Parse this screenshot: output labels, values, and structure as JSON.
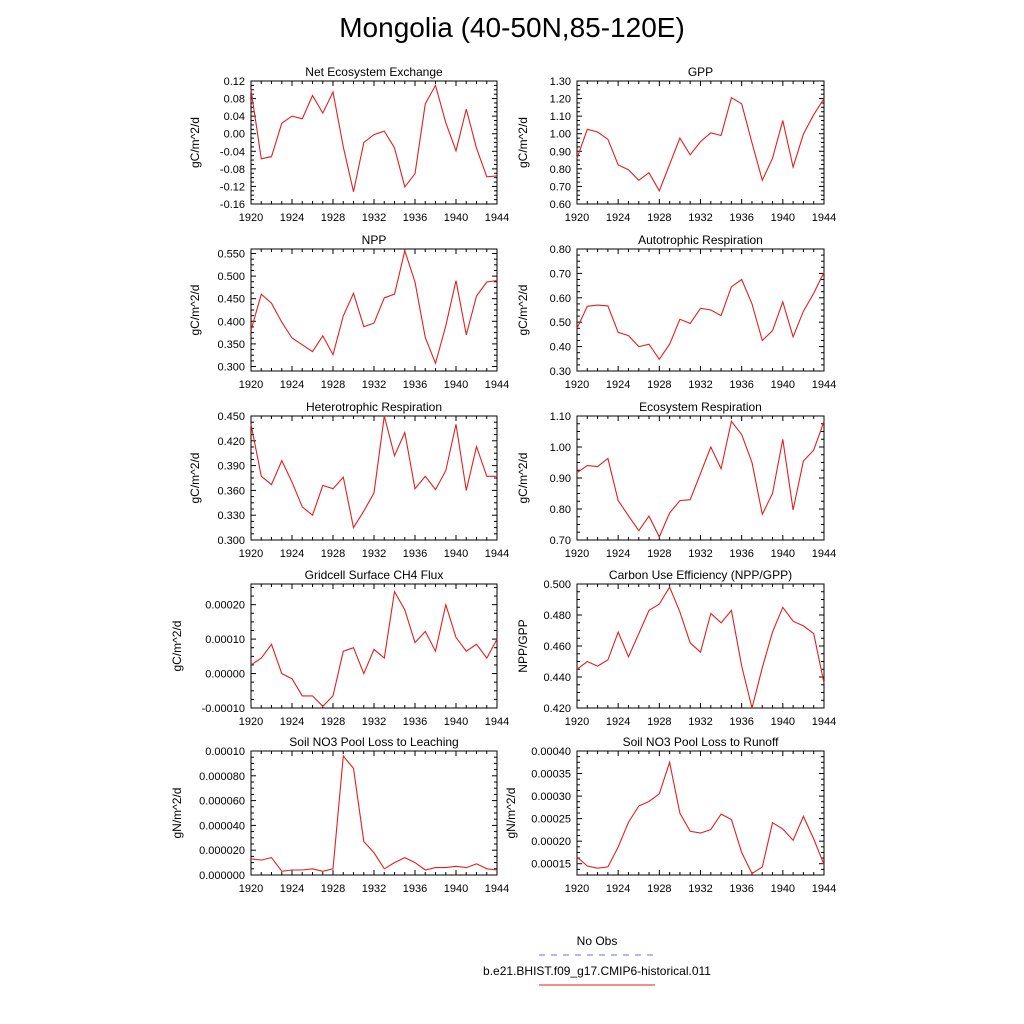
{
  "title": "Mongolia (40-50N,85-120E)",
  "legend": [
    {
      "label": "No Obs",
      "color": "#6a6aff",
      "dash": true
    },
    {
      "label": "b.e21.BHIST.f09_g17.CMIP6-historical.011",
      "color": "#e02020",
      "dash": false
    }
  ],
  "chart_data": [
    {
      "type": "line",
      "title": "Net Ecosystem Exchange",
      "ylabel": "gC/m^2/d",
      "xlim": [
        1920,
        1944
      ],
      "ylim": [
        -0.16,
        0.12
      ],
      "yticks": [
        "0.12",
        "0.08",
        "0.04",
        "0.00",
        "-0.04",
        "-0.08",
        "-0.12",
        "-0.16"
      ],
      "yvals": [
        0.12,
        0.08,
        0.04,
        0.0,
        -0.04,
        -0.08,
        -0.12,
        -0.16
      ],
      "xticks": [
        1920,
        1924,
        1928,
        1932,
        1936,
        1940,
        1944
      ],
      "series": [
        {
          "color": "#e02020",
          "x": [
            1920,
            1921,
            1922,
            1923,
            1924,
            1925,
            1926,
            1927,
            1928,
            1929,
            1930,
            1931,
            1932,
            1933,
            1934,
            1935,
            1936,
            1937,
            1938,
            1939,
            1940,
            1941,
            1942,
            1943,
            1944
          ],
          "values": [
            0.1,
            -0.057,
            -0.052,
            0.024,
            0.04,
            0.034,
            0.087,
            0.047,
            0.095,
            -0.03,
            -0.132,
            -0.02,
            -0.002,
            0.006,
            -0.032,
            -0.121,
            -0.091,
            0.068,
            0.11,
            0.025,
            -0.039,
            0.056,
            -0.033,
            -0.098,
            -0.096
          ]
        }
      ]
    },
    {
      "type": "line",
      "title": "GPP",
      "ylabel": "gC/m^2/d",
      "xlim": [
        1920,
        1944
      ],
      "ylim": [
        0.6,
        1.3
      ],
      "yticks": [
        "1.30",
        "1.20",
        "1.10",
        "1.00",
        "0.90",
        "0.80",
        "0.70",
        "0.60"
      ],
      "yvals": [
        1.3,
        1.2,
        1.1,
        1.0,
        0.9,
        0.8,
        0.7,
        0.6
      ],
      "xticks": [
        1920,
        1924,
        1928,
        1932,
        1936,
        1940,
        1944
      ],
      "series": [
        {
          "color": "#e02020",
          "x": [
            1920,
            1921,
            1922,
            1923,
            1924,
            1925,
            1926,
            1927,
            1928,
            1929,
            1930,
            1931,
            1932,
            1933,
            1934,
            1935,
            1936,
            1937,
            1938,
            1939,
            1940,
            1941,
            1942,
            1943,
            1944
          ],
          "values": [
            0.86,
            1.025,
            1.01,
            0.968,
            0.822,
            0.795,
            0.735,
            0.778,
            0.675,
            0.825,
            0.975,
            0.88,
            0.955,
            1.005,
            0.99,
            1.205,
            1.17,
            0.948,
            0.735,
            0.86,
            1.075,
            0.81,
            0.998,
            1.108,
            1.2
          ]
        }
      ]
    },
    {
      "type": "line",
      "title": "NPP",
      "ylabel": "gC/m^2/d",
      "xlim": [
        1920,
        1944
      ],
      "ylim": [
        0.29,
        0.56
      ],
      "yticks": [
        "0.550",
        "0.500",
        "0.450",
        "0.400",
        "0.350",
        "0.300"
      ],
      "yvals": [
        0.55,
        0.5,
        0.45,
        0.4,
        0.35,
        0.3
      ],
      "xticks": [
        1920,
        1924,
        1928,
        1932,
        1936,
        1940,
        1944
      ],
      "series": [
        {
          "color": "#e02020",
          "x": [
            1920,
            1921,
            1922,
            1923,
            1924,
            1925,
            1926,
            1927,
            1928,
            1929,
            1930,
            1931,
            1932,
            1933,
            1934,
            1935,
            1936,
            1937,
            1938,
            1939,
            1940,
            1941,
            1942,
            1943,
            1944
          ],
          "values": [
            0.38,
            0.46,
            0.44,
            0.398,
            0.363,
            0.348,
            0.333,
            0.368,
            0.326,
            0.412,
            0.462,
            0.388,
            0.396,
            0.452,
            0.46,
            0.556,
            0.487,
            0.364,
            0.307,
            0.39,
            0.49,
            0.37,
            0.456,
            0.487,
            0.49
          ]
        }
      ]
    },
    {
      "type": "line",
      "title": "Autotrophic Respiration",
      "ylabel": "gC/m^2/d",
      "xlim": [
        1920,
        1944
      ],
      "ylim": [
        0.3,
        0.8
      ],
      "yticks": [
        "0.80",
        "0.70",
        "0.60",
        "0.50",
        "0.40",
        "0.30"
      ],
      "yvals": [
        0.8,
        0.7,
        0.6,
        0.5,
        0.4,
        0.3
      ],
      "xticks": [
        1920,
        1924,
        1928,
        1932,
        1936,
        1940,
        1944
      ],
      "series": [
        {
          "color": "#e02020",
          "x": [
            1920,
            1921,
            1922,
            1923,
            1924,
            1925,
            1926,
            1927,
            1928,
            1929,
            1930,
            1931,
            1932,
            1933,
            1934,
            1935,
            1936,
            1937,
            1938,
            1939,
            1940,
            1941,
            1942,
            1943,
            1944
          ],
          "values": [
            0.475,
            0.565,
            0.57,
            0.567,
            0.458,
            0.445,
            0.4,
            0.41,
            0.348,
            0.41,
            0.512,
            0.495,
            0.557,
            0.55,
            0.527,
            0.645,
            0.675,
            0.575,
            0.425,
            0.465,
            0.583,
            0.44,
            0.545,
            0.618,
            0.705
          ]
        }
      ]
    },
    {
      "type": "line",
      "title": "Heterotrophic Respiration",
      "ylabel": "gC/m^2/d",
      "xlim": [
        1920,
        1944
      ],
      "ylim": [
        0.3,
        0.45
      ],
      "yticks": [
        "0.450",
        "0.420",
        "0.390",
        "0.360",
        "0.330",
        "0.300"
      ],
      "yvals": [
        0.45,
        0.42,
        0.39,
        0.36,
        0.33,
        0.3
      ],
      "xticks": [
        1920,
        1924,
        1928,
        1932,
        1936,
        1940,
        1944
      ],
      "series": [
        {
          "color": "#e02020",
          "x": [
            1920,
            1921,
            1922,
            1923,
            1924,
            1925,
            1926,
            1927,
            1928,
            1929,
            1930,
            1931,
            1932,
            1933,
            1934,
            1935,
            1936,
            1937,
            1938,
            1939,
            1940,
            1941,
            1942,
            1943,
            1944
          ],
          "values": [
            0.44,
            0.377,
            0.367,
            0.396,
            0.37,
            0.34,
            0.33,
            0.366,
            0.362,
            0.376,
            0.315,
            0.335,
            0.357,
            0.45,
            0.402,
            0.43,
            0.362,
            0.377,
            0.361,
            0.384,
            0.44,
            0.36,
            0.413,
            0.377,
            0.377
          ]
        }
      ]
    },
    {
      "type": "line",
      "title": "Ecosystem Respiration",
      "ylabel": "gC/m^2/d",
      "xlim": [
        1920,
        1944
      ],
      "ylim": [
        0.7,
        1.1
      ],
      "yticks": [
        "1.10",
        "1.00",
        "0.90",
        "0.80",
        "0.70"
      ],
      "yvals": [
        1.1,
        1.0,
        0.9,
        0.8,
        0.7
      ],
      "xticks": [
        1920,
        1924,
        1928,
        1932,
        1936,
        1940,
        1944
      ],
      "series": [
        {
          "color": "#e02020",
          "x": [
            1920,
            1921,
            1922,
            1923,
            1924,
            1925,
            1926,
            1927,
            1928,
            1929,
            1930,
            1931,
            1932,
            1933,
            1934,
            1935,
            1936,
            1937,
            1938,
            1939,
            1940,
            1941,
            1942,
            1943,
            1944
          ],
          "values": [
            0.917,
            0.94,
            0.937,
            0.963,
            0.827,
            0.778,
            0.73,
            0.777,
            0.71,
            0.787,
            0.827,
            0.83,
            0.915,
            1.0,
            0.93,
            1.083,
            1.04,
            0.95,
            0.783,
            0.85,
            1.025,
            0.797,
            0.955,
            0.99,
            1.083
          ]
        }
      ]
    },
    {
      "type": "line",
      "title": "Gridcell Surface CH4 Flux",
      "ylabel": "gC/m^2/d",
      "xlim": [
        1920,
        1944
      ],
      "ylim": [
        -0.0001,
        0.00026
      ],
      "yticks": [
        "0.00020",
        "0.00010",
        "0.00000",
        "-0.00010"
      ],
      "yvals": [
        0.0002,
        0.0001,
        0.0,
        -0.0001
      ],
      "xticks": [
        1920,
        1924,
        1928,
        1932,
        1936,
        1940,
        1944
      ],
      "series": [
        {
          "color": "#e02020",
          "x": [
            1920,
            1921,
            1922,
            1923,
            1924,
            1925,
            1926,
            1927,
            1928,
            1929,
            1930,
            1931,
            1932,
            1933,
            1934,
            1935,
            1936,
            1937,
            1938,
            1939,
            1940,
            1941,
            1942,
            1943,
            1944
          ],
          "values": [
            2.5e-05,
            4.5e-05,
            8.5e-05,
            0.0,
            -1.5e-05,
            -6.5e-05,
            -6.5e-05,
            -9.5e-05,
            -6.5e-05,
            6.5e-05,
            7.5e-05,
            0.0,
            7e-05,
            4.5e-05,
            0.000238,
            0.000185,
            9e-05,
            0.000122,
            6.5e-05,
            0.0002,
            0.000105,
            6.5e-05,
            8.5e-05,
            4.5e-05,
            0.0001
          ]
        }
      ]
    },
    {
      "type": "line",
      "title": "Carbon Use Efficiency (NPP/GPP)",
      "ylabel": "NPP/GPP",
      "xlim": [
        1920,
        1944
      ],
      "ylim": [
        0.42,
        0.5
      ],
      "yticks": [
        "0.500",
        "0.480",
        "0.460",
        "0.440",
        "0.420"
      ],
      "yvals": [
        0.5,
        0.48,
        0.46,
        0.44,
        0.42
      ],
      "xticks": [
        1920,
        1924,
        1928,
        1932,
        1936,
        1940,
        1944
      ],
      "series": [
        {
          "color": "#e02020",
          "x": [
            1920,
            1921,
            1922,
            1923,
            1924,
            1925,
            1926,
            1927,
            1928,
            1929,
            1930,
            1931,
            1932,
            1933,
            1934,
            1935,
            1936,
            1937,
            1938,
            1939,
            1940,
            1941,
            1942,
            1943,
            1944
          ],
          "values": [
            0.445,
            0.45,
            0.447,
            0.451,
            0.469,
            0.453,
            0.468,
            0.483,
            0.487,
            0.498,
            0.482,
            0.462,
            0.456,
            0.481,
            0.475,
            0.483,
            0.447,
            0.42,
            0.446,
            0.469,
            0.485,
            0.476,
            0.473,
            0.468,
            0.436
          ]
        }
      ]
    },
    {
      "type": "line",
      "title": "Soil NO3 Pool Loss to Leaching",
      "ylabel": "gN/m^2/d",
      "xlim": [
        1920,
        1944
      ],
      "ylim": [
        0.0,
        0.0001
      ],
      "yticks": [
        "0.00010",
        "0.000080",
        "0.000060",
        "0.000040",
        "0.000020",
        "0.000000"
      ],
      "yvals": [
        0.0001,
        8e-05,
        6e-05,
        4e-05,
        2e-05,
        0.0
      ],
      "xticks": [
        1920,
        1924,
        1928,
        1932,
        1936,
        1940,
        1944
      ],
      "series": [
        {
          "color": "#e02020",
          "x": [
            1920,
            1921,
            1922,
            1923,
            1924,
            1925,
            1926,
            1927,
            1928,
            1929,
            1930,
            1931,
            1932,
            1933,
            1934,
            1935,
            1936,
            1937,
            1938,
            1939,
            1940,
            1941,
            1942,
            1943,
            1944
          ],
          "values": [
            1.3e-05,
            1.2e-05,
            1.4e-05,
            3e-06,
            4e-06,
            4e-06,
            5e-06,
            3e-06,
            5e-06,
            9.6e-05,
            8.6e-05,
            2.7e-05,
            1.8e-05,
            5e-06,
            1e-05,
            1.4e-05,
            1e-05,
            4e-06,
            6e-06,
            6e-06,
            7e-06,
            6e-06,
            9e-06,
            5e-06,
            4e-06
          ]
        }
      ]
    },
    {
      "type": "line",
      "title": "Soil NO3 Pool Loss to Runoff",
      "ylabel": "gN/m^2/d",
      "xlim": [
        1920,
        1944
      ],
      "ylim": [
        0.000125,
        0.0004
      ],
      "yticks": [
        "0.00040",
        "0.00035",
        "0.00030",
        "0.00025",
        "0.00020",
        "0.00015"
      ],
      "yvals": [
        0.0004,
        0.00035,
        0.0003,
        0.00025,
        0.0002,
        0.00015
      ],
      "xticks": [
        1920,
        1924,
        1928,
        1932,
        1936,
        1940,
        1944
      ],
      "series": [
        {
          "color": "#e02020",
          "x": [
            1920,
            1921,
            1922,
            1923,
            1924,
            1925,
            1926,
            1927,
            1928,
            1929,
            1930,
            1931,
            1932,
            1933,
            1934,
            1935,
            1936,
            1937,
            1938,
            1939,
            1940,
            1941,
            1942,
            1943,
            1944
          ],
          "values": [
            0.000165,
            0.000145,
            0.00014,
            0.000143,
            0.000187,
            0.000242,
            0.000278,
            0.000288,
            0.000305,
            0.000375,
            0.000262,
            0.000222,
            0.000218,
            0.000226,
            0.00026,
            0.000248,
            0.000175,
            0.000128,
            0.000143,
            0.000241,
            0.000227,
            0.000202,
            0.000255,
            0.000205,
            0.000148
          ]
        }
      ]
    }
  ]
}
